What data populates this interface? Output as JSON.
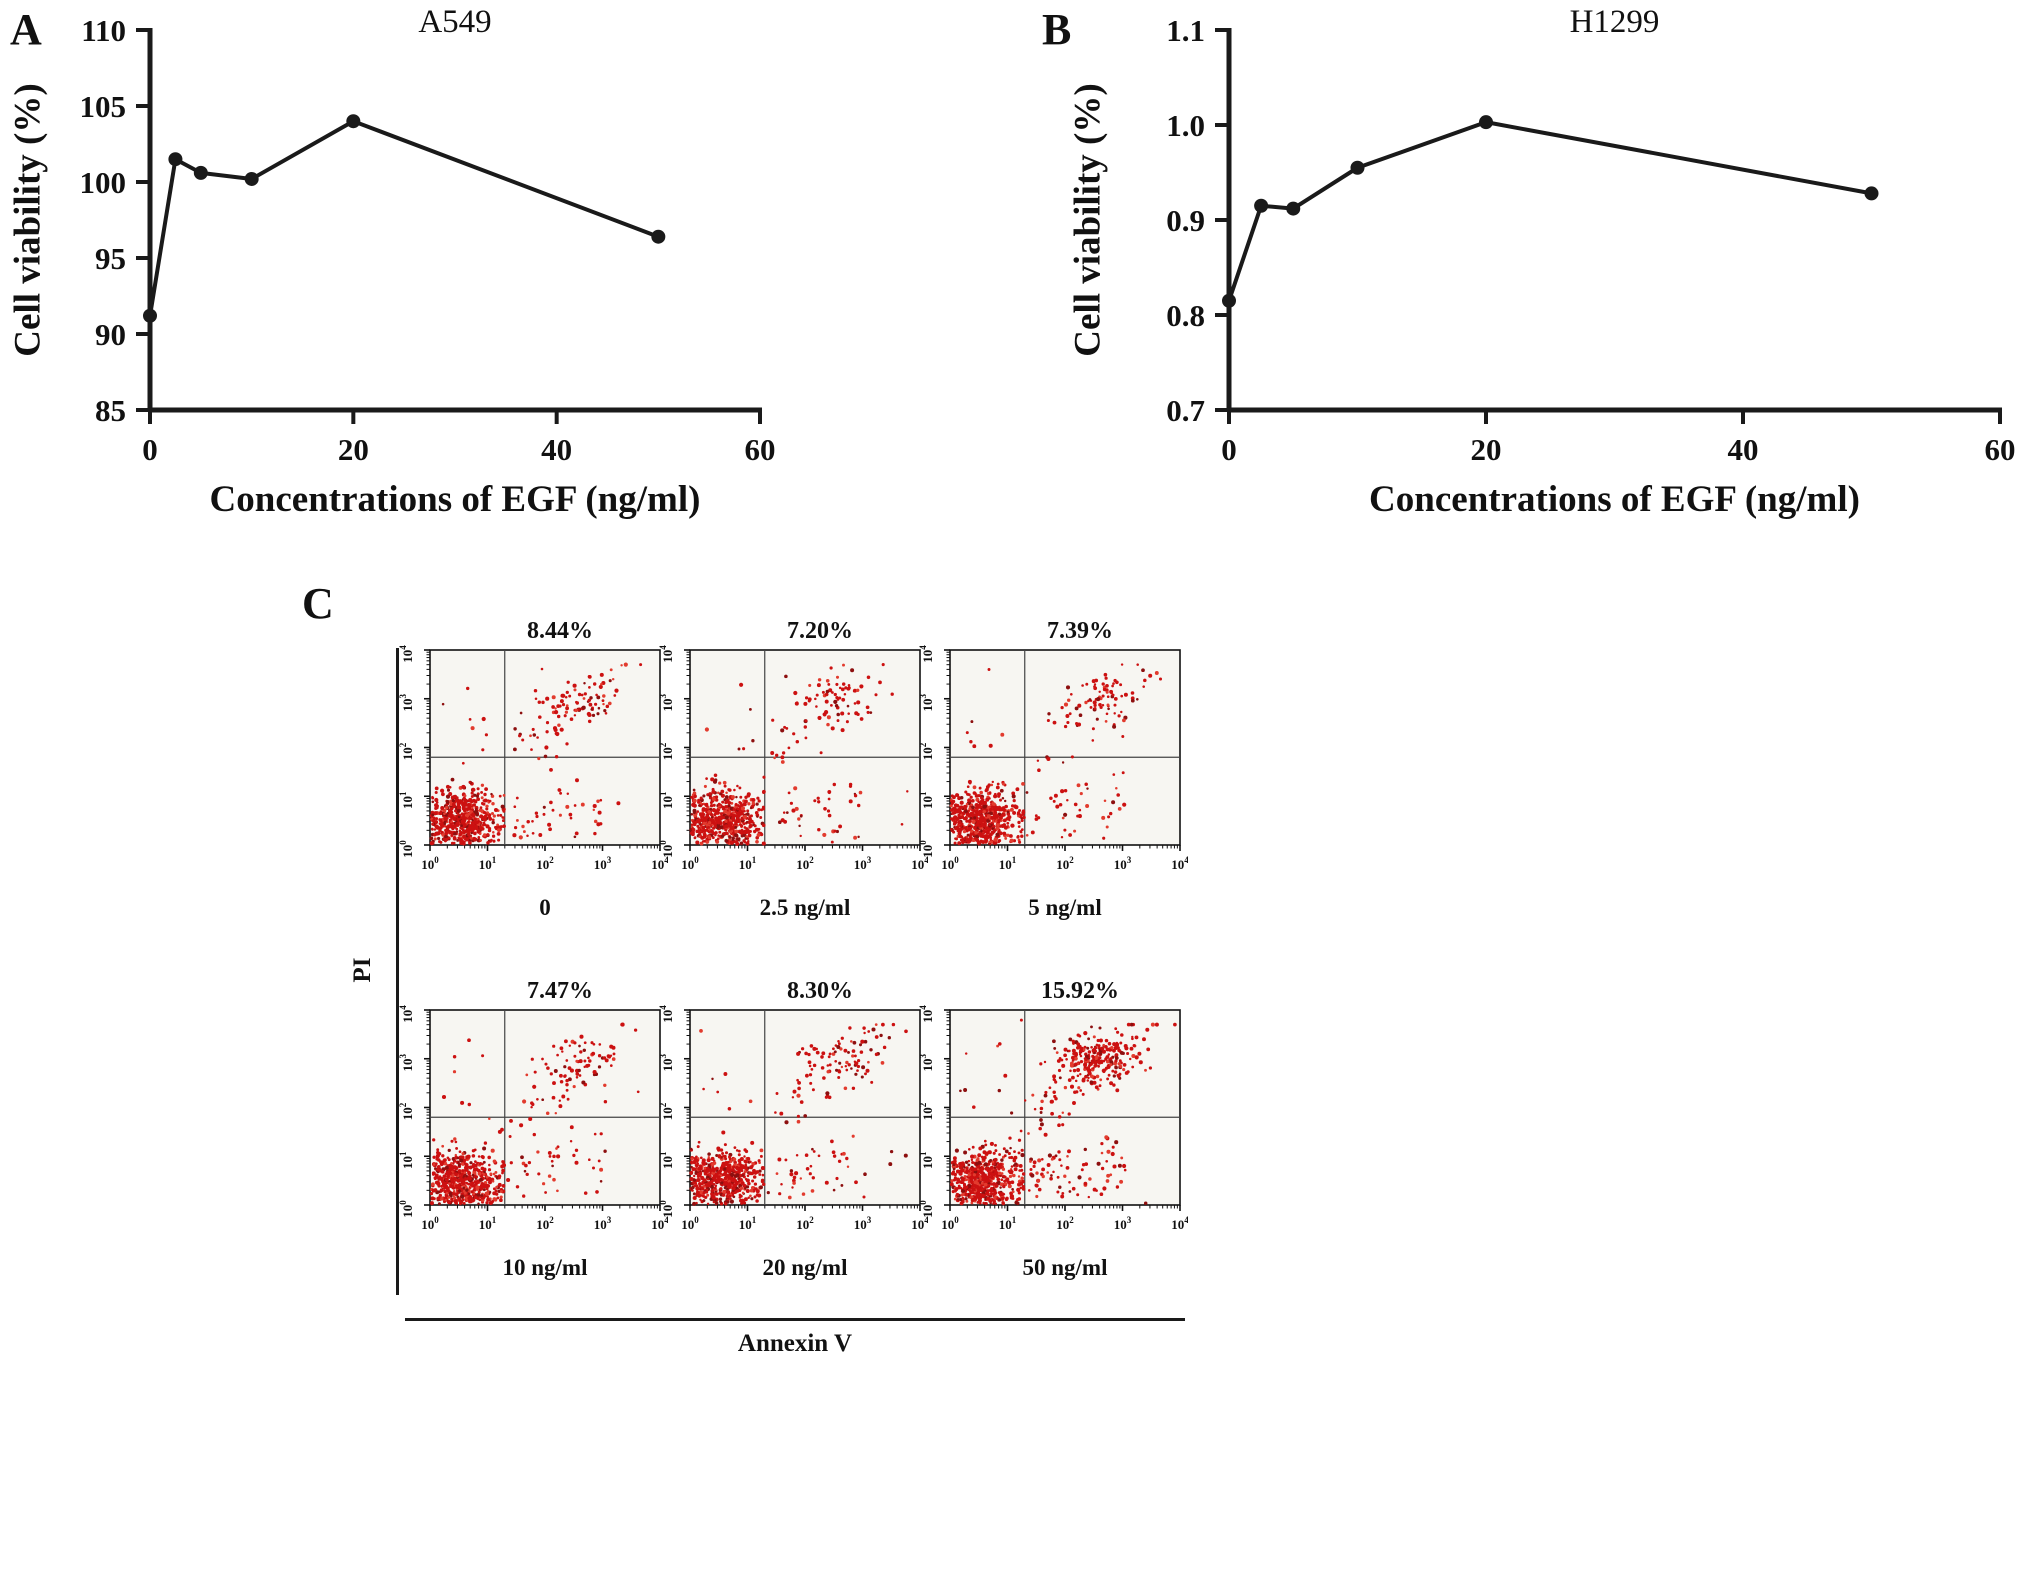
{
  "panels": {
    "a": {
      "letter": "A"
    },
    "b": {
      "letter": "B"
    },
    "c": {
      "letter": "C"
    }
  },
  "colors": {
    "line": "#1a1a1a",
    "dot_primary": "#cc1111",
    "dot_dark": "#8d0f0f",
    "dot_light": "#e23b2e"
  },
  "chart_data": [
    {
      "type": "line",
      "panel": "A",
      "title": "A549",
      "xlabel": "Concentrations of EGF (ng/ml)",
      "ylabel": "Cell viability (%)",
      "x": [
        0,
        2.5,
        5,
        10,
        20,
        50
      ],
      "y": [
        91.2,
        101.5,
        100.6,
        100.2,
        104.0,
        96.4
      ],
      "xlim": [
        0,
        60
      ],
      "ylim": [
        85,
        110
      ],
      "xtick_values": [
        0,
        20,
        40,
        60
      ],
      "xtick_labels": [
        "0",
        "20",
        "40",
        "60"
      ],
      "ytick_values": [
        85,
        90,
        95,
        100,
        105,
        110
      ],
      "ytick_labels": [
        "85",
        "90",
        "95",
        "100",
        "105",
        "110"
      ],
      "grid": false,
      "legend": false
    },
    {
      "type": "line",
      "panel": "B",
      "title": "H1299",
      "xlabel": "Concentrations of EGF (ng/ml)",
      "ylabel": "Cell viability (%)",
      "x": [
        0,
        2.5,
        5,
        10,
        20,
        50
      ],
      "y": [
        0.815,
        0.915,
        0.912,
        0.955,
        1.003,
        0.928
      ],
      "xlim": [
        0,
        60
      ],
      "ylim": [
        0.7,
        1.1
      ],
      "xtick_values": [
        0,
        20,
        40,
        60
      ],
      "xtick_labels": [
        "0",
        "20",
        "40",
        "60"
      ],
      "ytick_values": [
        0.7,
        0.8,
        0.9,
        1.0,
        1.1
      ],
      "ytick_labels": [
        "0.7",
        "0.8",
        "0.9",
        "1.0",
        "1.1"
      ],
      "grid": false,
      "legend": false
    },
    {
      "type": "scatter",
      "panel": "C",
      "subtype": "flow-cytometry-annexin-pi",
      "xlabel": "Annexin V",
      "ylabel": "PI",
      "axis_scale": "log10",
      "tick_exponents": [
        0,
        1,
        2,
        3,
        4
      ],
      "quadrant_log": [
        1.3,
        1.8
      ],
      "plots": [
        {
          "condition": "0",
          "apoptosis_pct": "8.44%"
        },
        {
          "condition": "2.5 ng/ml",
          "apoptosis_pct": "7.20%"
        },
        {
          "condition": "5 ng/ml",
          "apoptosis_pct": "7.39%"
        },
        {
          "condition": "10 ng/ml",
          "apoptosis_pct": "7.47%"
        },
        {
          "condition": "20 ng/ml",
          "apoptosis_pct": "8.30%"
        },
        {
          "condition": "50 ng/ml",
          "apoptosis_pct": "15.92%"
        }
      ]
    }
  ]
}
